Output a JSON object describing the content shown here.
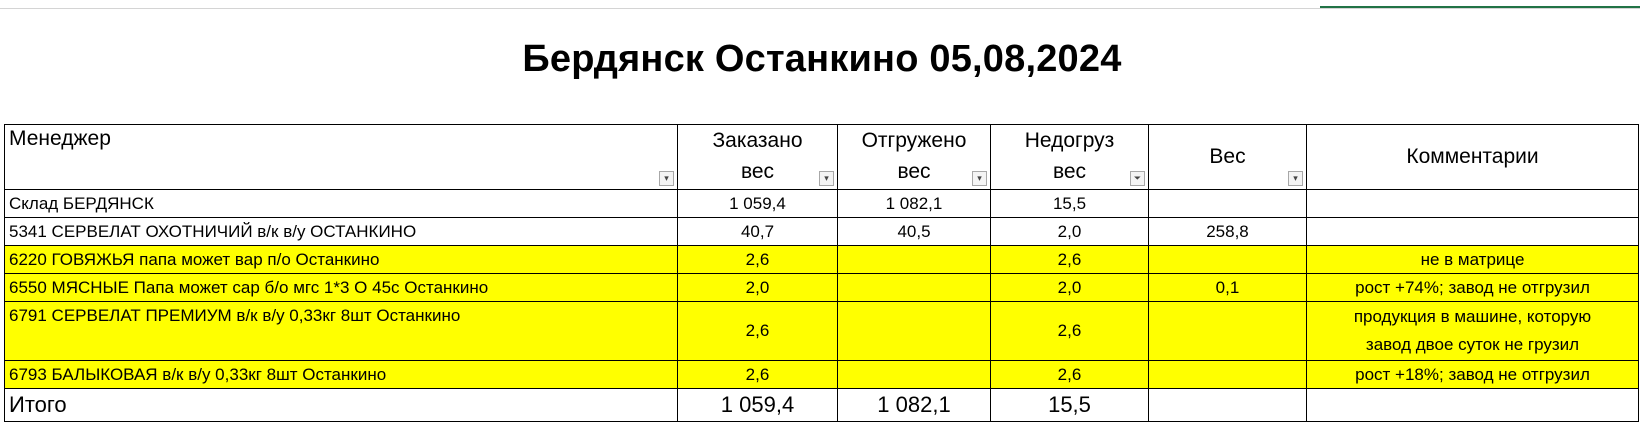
{
  "title": "Бердянск Останкино 05,08,2024",
  "headers": {
    "manager": "Менеджер",
    "ordered_l1": "Заказано",
    "ordered_l2": "вес",
    "shipped_l1": "Отгружено",
    "shipped_l2": "вес",
    "short_l1": "Недогруз",
    "short_l2": "вес",
    "weight": "Вес",
    "comments": "Комментарии"
  },
  "rows": [
    {
      "name": "Склад БЕРДЯНСК",
      "ordered": "1 059,4",
      "shipped": "1 082,1",
      "short": "15,5",
      "weight": "",
      "comment": ""
    },
    {
      "name": "5341 СЕРВЕЛАТ ОХОТНИЧИЙ в/к в/у  ОСТАНКИНО",
      "ordered": "40,7",
      "shipped": "40,5",
      "short": "2,0",
      "weight": "258,8",
      "comment": ""
    },
    {
      "name": "6220 ГОВЯЖЬЯ папа может вар п/о  Останкино",
      "ordered": "2,6",
      "shipped": "",
      "short": "2,6",
      "weight": "",
      "comment": "не в матрице"
    },
    {
      "name": "6550 МЯСНЫЕ Папа может сар б/о мгс 1*3 О 45с  Останкино",
      "ordered": "2,0",
      "shipped": "",
      "short": "2,0",
      "weight": "0,1",
      "comment": "рост +74%; завод не отгрузил"
    },
    {
      "name": "6791 СЕРВЕЛАТ ПРЕМИУМ в/к в/у 0,33кг 8шт  Останкино",
      "ordered": "2,6",
      "shipped": "",
      "short": "2,6",
      "weight": "",
      "comment_l1": "продукция в машине, которую",
      "comment_l2": "завод двое суток не грузил"
    },
    {
      "name": "6793 БАЛЫКОВАЯ в/к в/у 0,33кг 8шт  Останкино",
      "ordered": "2,6",
      "shipped": "",
      "short": "2,6",
      "weight": "",
      "comment": "рост +18%; завод не отгрузил"
    }
  ],
  "total": {
    "label": "Итого",
    "ordered": "1 059,4",
    "shipped": "1 082,1",
    "short": "15,5"
  },
  "colors": {
    "highlight": "#ffff00",
    "selection": "#217346"
  }
}
